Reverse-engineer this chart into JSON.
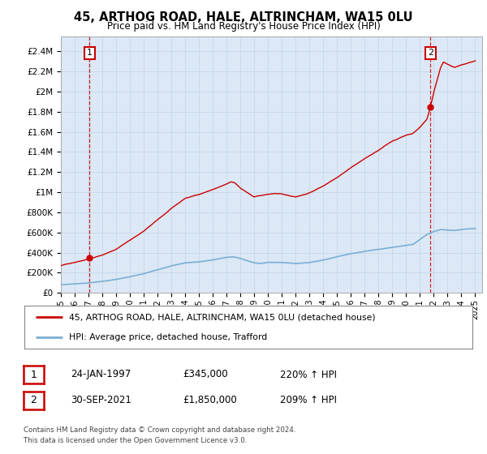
{
  "title": "45, ARTHOG ROAD, HALE, ALTRINCHAM, WA15 0LU",
  "subtitle": "Price paid vs. HM Land Registry's House Price Index (HPI)",
  "ylabel_ticks": [
    "£0",
    "£200K",
    "£400K",
    "£600K",
    "£800K",
    "£1M",
    "£1.2M",
    "£1.4M",
    "£1.6M",
    "£1.8M",
    "£2M",
    "£2.2M",
    "£2.4M"
  ],
  "ytick_vals": [
    0,
    200000,
    400000,
    600000,
    800000,
    1000000,
    1200000,
    1400000,
    1600000,
    1800000,
    2000000,
    2200000,
    2400000
  ],
  "ylim": [
    0,
    2550000
  ],
  "xlim_start": 1995.0,
  "xlim_end": 2025.5,
  "xtick_years": [
    1995,
    1996,
    1997,
    1998,
    1999,
    2000,
    2001,
    2002,
    2003,
    2004,
    2005,
    2006,
    2007,
    2008,
    2009,
    2010,
    2011,
    2012,
    2013,
    2014,
    2015,
    2016,
    2017,
    2018,
    2019,
    2020,
    2021,
    2022,
    2023,
    2024,
    2025
  ],
  "sale1_x": 1997.07,
  "sale1_y": 345000,
  "sale1_label": "1",
  "sale2_x": 2021.75,
  "sale2_y": 1850000,
  "sale2_label": "2",
  "sale_color": "#cc0000",
  "hpi_color": "#7bafd4",
  "legend_entry1": "45, ARTHOG ROAD, HALE, ALTRINCHAM, WA15 0LU (detached house)",
  "legend_entry2": "HPI: Average price, detached house, Trafford",
  "footnote1": "Contains HM Land Registry data © Crown copyright and database right 2024.",
  "footnote2": "This data is licensed under the Open Government Licence v3.0.",
  "table_row1": [
    "1",
    "24-JAN-1997",
    "£345,000",
    "220% ↑ HPI"
  ],
  "table_row2": [
    "2",
    "30-SEP-2021",
    "£1,850,000",
    "209% ↑ HPI"
  ],
  "plot_bg_color": "#dce8f5"
}
